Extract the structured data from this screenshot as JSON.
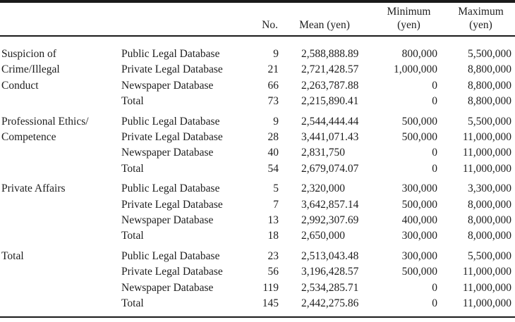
{
  "table": {
    "header": {
      "no": "No.",
      "mean": "Mean (yen)",
      "minimum_line1": "Minimum",
      "minimum_line2": "(yen)",
      "maximum_line1": "Maximum",
      "maximum_line2": "(yen)"
    },
    "sections": [
      {
        "category": [
          "Suspicion of",
          "Crime/Illegal",
          "Conduct"
        ],
        "rows": [
          {
            "source": "Public Legal Database",
            "no": "9",
            "mean": "2,588,888.89",
            "min": "800,000",
            "max": "5,500,000"
          },
          {
            "source": "Private Legal Database",
            "no": "21",
            "mean": "2,721,428.57",
            "min": "1,000,000",
            "max": "8,800,000"
          },
          {
            "source": "Newspaper Database",
            "no": "66",
            "mean": "2,263,787.88",
            "min": "0",
            "max": "8,800,000"
          },
          {
            "source": "Total",
            "no": "73",
            "mean": "2,215,890.41",
            "min": "0",
            "max": "8,800,000"
          }
        ]
      },
      {
        "category": [
          "Professional Ethics/",
          "Competence"
        ],
        "rows": [
          {
            "source": "Public Legal Database",
            "no": "9",
            "mean": "2,544,444.44",
            "min": "500,000",
            "max": "5,500,000"
          },
          {
            "source": "Private Legal Database",
            "no": "28",
            "mean": "3,441,071.43",
            "min": "500,000",
            "max": "11,000,000"
          },
          {
            "source": "Newspaper Database",
            "no": "40",
            "mean": "2,831,750",
            "min": "0",
            "max": "11,000,000"
          },
          {
            "source": "Total",
            "no": "54",
            "mean": "2,679,074.07",
            "min": "0",
            "max": "11,000,000"
          }
        ]
      },
      {
        "category": [
          "Private Affairs"
        ],
        "rows": [
          {
            "source": "Public Legal Database",
            "no": "5",
            "mean": "2,320,000",
            "min": "300,000",
            "max": "3,300,000"
          },
          {
            "source": "Private Legal Database",
            "no": "7",
            "mean": "3,642,857.14",
            "min": "500,000",
            "max": "8,000,000"
          },
          {
            "source": "Newspaper Database",
            "no": "13",
            "mean": "2,992,307.69",
            "min": "400,000",
            "max": "8,000,000"
          },
          {
            "source": "Total",
            "no": "18",
            "mean": "2,650,000",
            "min": "300,000",
            "max": "8,000,000"
          }
        ]
      },
      {
        "category": [
          "Total"
        ],
        "rows": [
          {
            "source": "Public Legal Database",
            "no": "23",
            "mean": "2,513,043.48",
            "min": "300,000",
            "max": "5,500,000"
          },
          {
            "source": "Private Legal Database",
            "no": "56",
            "mean": "3,196,428.57",
            "min": "500,000",
            "max": "11,000,000"
          },
          {
            "source": "Newspaper Database",
            "no": "119",
            "mean": "2,534,285.71",
            "min": "0",
            "max": "11,000,000"
          },
          {
            "source": "Total",
            "no": "145",
            "mean": "2,442,275.86",
            "min": "0",
            "max": "11,000,000"
          }
        ]
      }
    ]
  }
}
